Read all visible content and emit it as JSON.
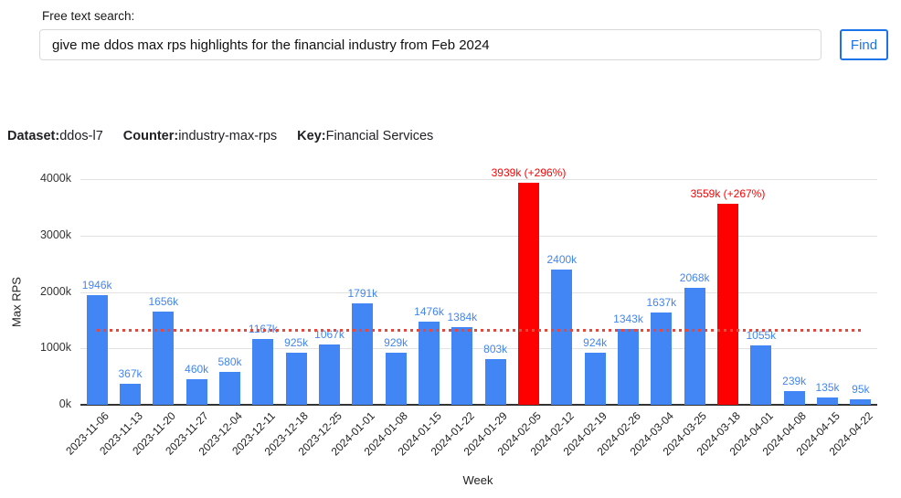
{
  "search": {
    "label": "Free text search:",
    "value": "give me ddos max rps highlights for the financial industry from Feb 2024",
    "find_label": "Find"
  },
  "meta": {
    "dataset_label": "Dataset:",
    "dataset_value": "ddos-l7",
    "counter_label": "Counter:",
    "counter_value": "industry-max-rps",
    "key_label": "Key:",
    "key_value": "Financial Services"
  },
  "chart_data": {
    "type": "bar",
    "title": "",
    "xlabel": "Week",
    "ylabel": "Max RPS",
    "ylim": [
      0,
      4000
    ],
    "yticks": [
      0,
      1000,
      2000,
      3000,
      4000
    ],
    "ytick_labels": [
      "0k",
      "1000k",
      "2000k",
      "3000k",
      "4000k"
    ],
    "grid": "horizontal",
    "legend_position": "none",
    "categories": [
      "2023-11-06",
      "2023-11-13",
      "2023-11-20",
      "2023-11-27",
      "2023-12-04",
      "2023-12-11",
      "2023-12-18",
      "2023-12-25",
      "2024-01-01",
      "2024-01-08",
      "2024-01-15",
      "2024-01-22",
      "2024-01-29",
      "2024-02-05",
      "2024-02-12",
      "2024-02-19",
      "2024-02-26",
      "2024-03-04",
      "2024-03-25",
      "2024-03-18",
      "2024-04-01",
      "2024-04-08",
      "2024-04-15",
      "2024-04-22"
    ],
    "values": [
      1946,
      367,
      1656,
      460,
      580,
      1167,
      925,
      1067,
      1791,
      929,
      1476,
      1384,
      803,
      3939,
      2400,
      924,
      1343,
      1637,
      2068,
      3559,
      1055,
      239,
      135,
      95
    ],
    "bar_labels": [
      "1946k",
      "367k",
      "1656k",
      "460k",
      "580k",
      "1167k",
      "925k",
      "1067k",
      "1791k",
      "929k",
      "1476k",
      "1384k",
      "803k",
      "3939k (+296%)",
      "2400k",
      "924k",
      "1343k",
      "1637k",
      "2068k",
      "3559k (+267%)",
      "1055k",
      "239k",
      "135k",
      "95k"
    ],
    "highlighted_indexes": [
      13,
      19
    ],
    "baseline_value": 1334,
    "colors": {
      "bar": "#4285f4",
      "bar_label": "#4285f4",
      "highlight_bar": "#ff0000",
      "highlight_label": "#ff0000",
      "baseline_dotted_line": "#e8473c",
      "gridline": "#e2e2e2",
      "axis": "#333333",
      "button_accent": "#1a73e8"
    }
  }
}
